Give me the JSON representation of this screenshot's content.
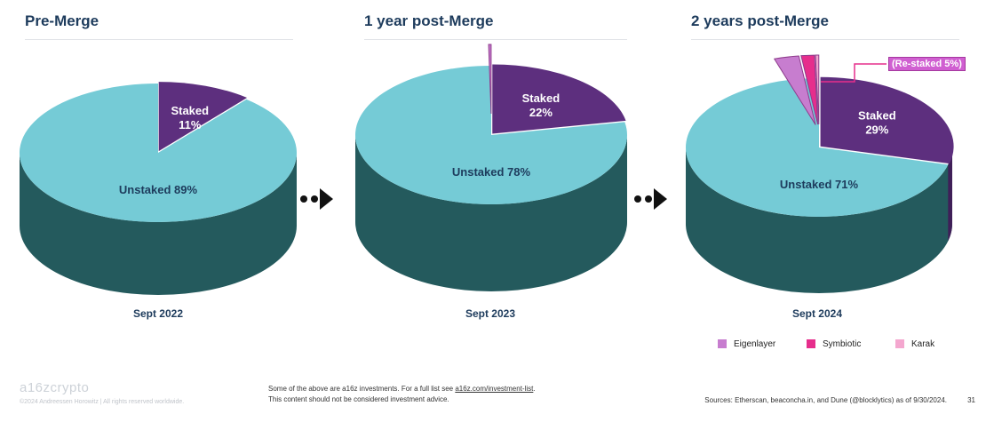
{
  "panels": [
    {
      "title": "Pre-Merge",
      "date": "Sept 2022"
    },
    {
      "title": "1 year post-Merge",
      "date": "Sept 2023"
    },
    {
      "title": "2 years post-Merge",
      "date": "Sept 2024"
    }
  ],
  "chart_data": [
    {
      "type": "pie",
      "title": "Pre-Merge",
      "subtitle": "Sept 2022",
      "categories": [
        "Staked",
        "Unstaked"
      ],
      "values": [
        11,
        89
      ],
      "labels": [
        "11%",
        "89%"
      ],
      "colors": {
        "Staked": "#5d2f7e",
        "Unstaked": "#75cbd6"
      }
    },
    {
      "type": "pie",
      "title": "1 year post-Merge",
      "subtitle": "Sept 2023",
      "categories": [
        "Staked",
        "Unstaked"
      ],
      "values": [
        22,
        78
      ],
      "labels": [
        "22%",
        "78%"
      ],
      "colors": {
        "Staked": "#5d2f7e",
        "Unstaked": "#75cbd6"
      },
      "breakout": [
        {
          "name": "Eigenlayer",
          "value": 0.3
        }
      ]
    },
    {
      "type": "pie",
      "title": "2 years post-Merge",
      "subtitle": "Sept 2024",
      "categories": [
        "Staked",
        "Unstaked"
      ],
      "values": [
        29,
        71
      ],
      "labels": [
        "29%",
        "71%"
      ],
      "colors": {
        "Staked": "#5d2f7e",
        "Unstaked": "#75cbd6"
      },
      "annotation": "(Re-staked 5%)",
      "breakout": [
        {
          "name": "Eigenlayer",
          "value": 3.0
        },
        {
          "name": "Symbiotic",
          "value": 1.6
        },
        {
          "name": "Karak",
          "value": 0.4
        }
      ]
    }
  ],
  "labels": {
    "staked": "Staked",
    "unstaked": "Unstaked"
  },
  "legend": [
    {
      "name": "Eigenlayer",
      "color": "#c77dcf"
    },
    {
      "name": "Symbiotic",
      "color": "#e62e8c"
    },
    {
      "name": "Karak",
      "color": "#f4a7cf"
    }
  ],
  "colors": {
    "staked": "#5d2f7e",
    "unstaked_top": "#75cbd6",
    "unstaked_side": "#245a5d",
    "staked_side": "#3f1f58",
    "title": "#1d3b5c"
  },
  "footer": {
    "logo": "a16zcrypto",
    "copyright": "©2024 Andreessen Horowitz  |  All rights reserved worldwide.",
    "disclaimer_line1_prefix": "Some of the above are a16z investments. For a full list see ",
    "disclaimer_link": "a16z.com/investment-list",
    "disclaimer_line1_suffix": ".",
    "disclaimer_line2": "This content should not be considered investment advice.",
    "sources": "Sources: Etherscan, beaconcha.in, and Dune (@blocklytics) as of 9/30/2024.",
    "page_number": "31"
  }
}
